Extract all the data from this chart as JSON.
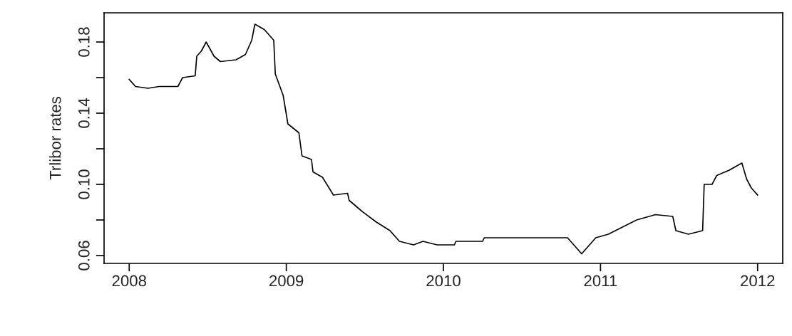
{
  "chart_data": {
    "type": "line",
    "ylabel": "Trlibor rates",
    "xlim": [
      2007.84,
      2012.16
    ],
    "xticks": [
      2008,
      2009,
      2010,
      2011,
      2012
    ],
    "ylim": [
      0.0556,
      0.1964
    ],
    "yticks": [
      {
        "value": 0.06,
        "label": "0.06"
      },
      {
        "value": 0.08,
        "label": null
      },
      {
        "value": 0.1,
        "label": "0.10"
      },
      {
        "value": 0.12,
        "label": null
      },
      {
        "value": 0.14,
        "label": "0.14"
      },
      {
        "value": 0.16,
        "label": null
      },
      {
        "value": 0.18,
        "label": "0.18"
      }
    ],
    "grid": false,
    "legend": false,
    "marker": "none",
    "line_style": "solid",
    "series": [
      {
        "color": "#000000",
        "x": [
          2008.0,
          2008.04,
          2008.12,
          2008.19,
          2008.31,
          2008.34,
          2008.42,
          2008.43,
          2008.46,
          2008.49,
          2008.54,
          2008.58,
          2008.68,
          2008.74,
          2008.78,
          2008.8,
          2008.86,
          2008.92,
          2008.93,
          2008.98,
          2009.01,
          2009.08,
          2009.1,
          2009.16,
          2009.17,
          2009.23,
          2009.3,
          2009.39,
          2009.4,
          2009.48,
          2009.57,
          2009.66,
          2009.72,
          2009.81,
          2009.87,
          2009.96,
          2010.07,
          2010.08,
          2010.25,
          2010.26,
          2010.79,
          2010.85,
          2010.88,
          2010.92,
          2010.97,
          2011.05,
          2011.23,
          2011.35,
          2011.46,
          2011.48,
          2011.56,
          2011.65,
          2011.66,
          2011.71,
          2011.74,
          2011.82,
          2011.9,
          2011.93,
          2011.96,
          2012.0
        ],
        "values": [
          0.159,
          0.155,
          0.154,
          0.155,
          0.155,
          0.16,
          0.161,
          0.172,
          0.175,
          0.18,
          0.172,
          0.169,
          0.17,
          0.173,
          0.181,
          0.19,
          0.187,
          0.181,
          0.162,
          0.15,
          0.134,
          0.129,
          0.116,
          0.114,
          0.107,
          0.104,
          0.094,
          0.095,
          0.091,
          0.085,
          0.079,
          0.074,
          0.068,
          0.066,
          0.068,
          0.066,
          0.066,
          0.068,
          0.068,
          0.07,
          0.07,
          0.064,
          0.061,
          0.065,
          0.07,
          0.072,
          0.08,
          0.083,
          0.082,
          0.074,
          0.072,
          0.074,
          0.1,
          0.1,
          0.105,
          0.108,
          0.112,
          0.103,
          0.098,
          0.094
        ]
      }
    ]
  }
}
